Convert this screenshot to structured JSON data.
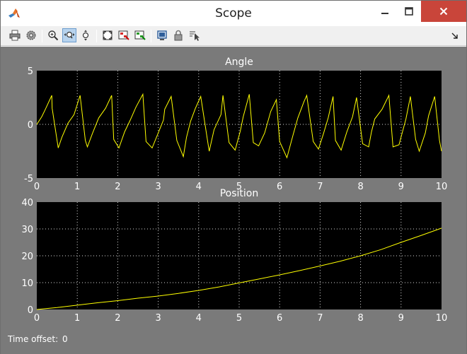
{
  "window": {
    "title": "Scope"
  },
  "toolbar": {
    "buttons": [
      {
        "icon": "printer-icon"
      },
      {
        "icon": "parameters-icon"
      },
      {
        "icon": "zoom-in-icon"
      },
      {
        "icon": "zoom-x-icon",
        "active": true
      },
      {
        "icon": "zoom-y-icon"
      },
      {
        "icon": "autoscale-icon"
      },
      {
        "icon": "save-axes-icon"
      },
      {
        "icon": "restore-axes-icon"
      },
      {
        "icon": "floating-scope-icon"
      },
      {
        "icon": "lock-icon"
      },
      {
        "icon": "signal-selection-icon"
      }
    ]
  },
  "footer": {
    "time_offset_label": "Time offset:",
    "time_offset_value": "0"
  },
  "colors": {
    "plot_bg": "#000000",
    "figure_bg": "#7a7a7a",
    "trace": "#ffff00",
    "grid": "#d8d8d8"
  },
  "chart_data": [
    {
      "type": "line",
      "title": "Angle",
      "xlim": [
        0,
        10
      ],
      "ylim": [
        -5,
        5
      ],
      "xticks": [
        "0",
        "1",
        "2",
        "3",
        "4",
        "5",
        "6",
        "7",
        "8",
        "9",
        "10"
      ],
      "yticks": [
        "5",
        "0",
        "-5"
      ],
      "grid": true,
      "series": [
        {
          "x": [
            0,
            0.12,
            0.2,
            0.37,
            0.38,
            0.53,
            0.62,
            0.77,
            0.92,
            1.07,
            1.2,
            1.25,
            1.38,
            1.53,
            1.7,
            1.85,
            1.9,
            2.03,
            2.17,
            2.31,
            2.45,
            2.62,
            2.7,
            2.85,
            3.0,
            3.13,
            3.16,
            3.32,
            3.46,
            3.62,
            3.7,
            3.8,
            3.92,
            4.05,
            4.23,
            4.26,
            4.38,
            4.55,
            4.6,
            4.75,
            4.9,
            5.03,
            5.1,
            5.25,
            5.35,
            5.48,
            5.63,
            5.78,
            5.92,
            6.0,
            6.18,
            6.33,
            6.45,
            6.6,
            6.67,
            6.83,
            6.96,
            7.08,
            7.2,
            7.32,
            7.38,
            7.52,
            7.66,
            7.8,
            7.9,
            8.05,
            8.2,
            8.27,
            8.35,
            8.53,
            8.7,
            8.8,
            8.95,
            9.12,
            9.23,
            9.36,
            9.45,
            9.6,
            9.68,
            9.83,
            9.95,
            10.0
          ],
          "y": [
            0,
            0.7,
            1.3,
            2.7,
            1.5,
            -2.2,
            -1.2,
            0.1,
            0.9,
            2.7,
            -1.5,
            -2.1,
            -0.8,
            0.6,
            1.5,
            2.7,
            -1.4,
            -2.2,
            -0.7,
            0.4,
            1.6,
            2.8,
            -1.6,
            -2.2,
            -0.8,
            0.4,
            1.4,
            2.6,
            -1.5,
            -3.0,
            -1.2,
            0.3,
            1.5,
            2.6,
            -1.8,
            -2.5,
            -0.5,
            0.9,
            2.7,
            -1.7,
            -2.4,
            -0.6,
            0.7,
            2.8,
            -1.7,
            -2.0,
            -0.8,
            1.2,
            2.3,
            -1.6,
            -3.1,
            -1.0,
            0.6,
            2.1,
            2.7,
            -1.6,
            -2.3,
            -0.9,
            0.6,
            2.6,
            -1.5,
            -2.4,
            -0.7,
            0.7,
            2.5,
            -1.8,
            -2.1,
            -0.7,
            0.5,
            1.4,
            2.7,
            -2.1,
            -1.9,
            0.5,
            2.6,
            -1.4,
            -2.5,
            -0.8,
            0.8,
            2.6,
            -1.5,
            -2.5
          ]
        }
      ]
    },
    {
      "type": "line",
      "title": "Position",
      "xlim": [
        0,
        10
      ],
      "ylim": [
        0,
        40
      ],
      "xticks": [
        "0",
        "1",
        "2",
        "3",
        "4",
        "5",
        "6",
        "7",
        "8",
        "9",
        "10"
      ],
      "yticks": [
        "40",
        "30",
        "20",
        "10",
        "0"
      ],
      "grid": true,
      "series": [
        {
          "x": [
            0,
            0.5,
            1,
            1.5,
            2,
            2.5,
            3,
            3.5,
            4,
            4.5,
            5,
            5.5,
            6,
            6.5,
            7,
            7.5,
            8,
            8.5,
            9,
            9.5,
            10
          ],
          "y": [
            0,
            0.7,
            1.6,
            2.5,
            3.3,
            4.2,
            5.0,
            6.0,
            7.1,
            8.4,
            9.9,
            11.4,
            12.9,
            14.5,
            16.2,
            18.0,
            20.0,
            22.3,
            25.0,
            27.6,
            30.3
          ]
        }
      ]
    }
  ]
}
